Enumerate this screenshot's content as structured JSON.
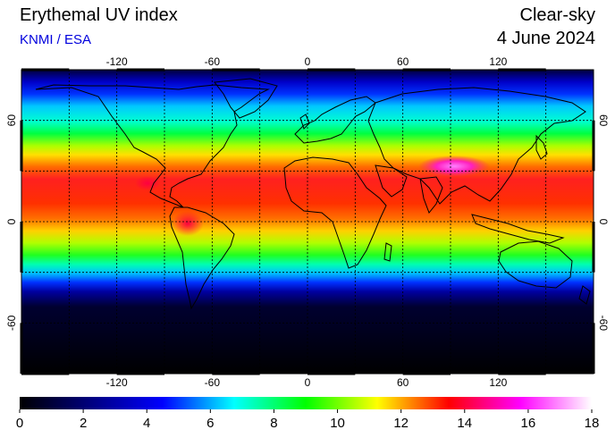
{
  "header": {
    "title": "Erythemal UV index",
    "source": "KNMI / ESA",
    "mode": "Clear-sky",
    "date": "4 June 2024"
  },
  "map": {
    "projection": "equirectangular",
    "lon_range": [
      -180,
      180
    ],
    "lat_range": [
      -90,
      90
    ],
    "grid": true,
    "lon_ticks": [
      "-120",
      "-60",
      "0",
      "60",
      "120"
    ],
    "lat_ticks_left": [
      "60",
      "0",
      "-60"
    ],
    "lat_ticks_right": [
      "60",
      "0",
      "-60"
    ],
    "background": "#000000"
  },
  "colorbar": {
    "min": 0,
    "max": 18,
    "labels": [
      "0",
      "2",
      "4",
      "6",
      "8",
      "10",
      "12",
      "14",
      "16",
      "18"
    ],
    "stops": [
      "#000000",
      "#000080",
      "#0000ff",
      "#00ffff",
      "#00ff00",
      "#ffff00",
      "#ff0000",
      "#ff00ff",
      "#ffffff"
    ]
  }
}
